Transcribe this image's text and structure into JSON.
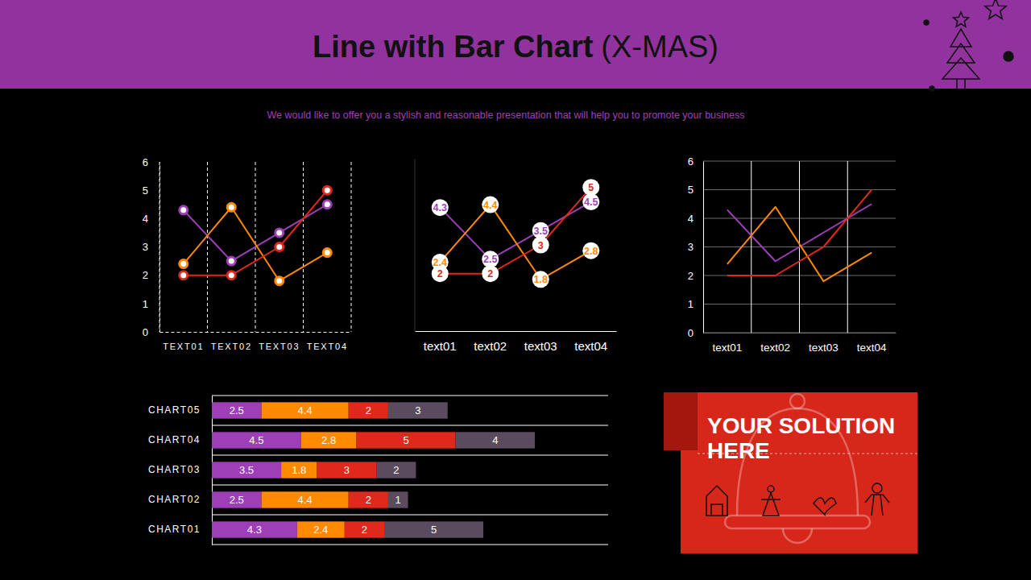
{
  "header": {
    "title": "Line with Bar Chart",
    "title_suffix": "(X-MAS)",
    "subtitle": "We would like to offer you a stylish and reasonable presentation that will help you to promote your business"
  },
  "chart_data": [
    {
      "type": "line",
      "categories": [
        "TEXT01",
        "TEXT02",
        "TEXT03",
        "TEXT04"
      ],
      "ylim": [
        0,
        6
      ],
      "yticks": [
        0,
        1,
        2,
        3,
        4,
        5,
        6
      ],
      "grid": "x",
      "series": [
        {
          "color": "#9e3fb8",
          "marker": "circle",
          "values": [
            4.3,
            2.5,
            3.5,
            4.5
          ]
        },
        {
          "color": "#ff8a00",
          "marker": "circle",
          "values": [
            2.4,
            4.4,
            1.8,
            2.8
          ]
        },
        {
          "color": "#e0281c",
          "marker": "circle",
          "values": [
            2,
            2,
            3,
            5
          ]
        }
      ]
    },
    {
      "type": "line",
      "categories": [
        "text01",
        "text02",
        "text03",
        "text04"
      ],
      "ylim": [
        0,
        6
      ],
      "tick_labels": "x",
      "data_labels": true,
      "series": [
        {
          "color": "#9e3fb8",
          "marker": "circle",
          "values": [
            4.3,
            2.5,
            3.5,
            4.5
          ]
        },
        {
          "color": "#ff8a00",
          "marker": "circle",
          "values": [
            2.4,
            4.4,
            1.8,
            2.8
          ]
        },
        {
          "color": "#e0281c",
          "marker": "circle",
          "values": [
            2,
            2,
            3,
            5
          ]
        }
      ]
    },
    {
      "type": "line",
      "categories": [
        "text01",
        "text02",
        "text03",
        "text04"
      ],
      "ylim": [
        0,
        6
      ],
      "yticks": [
        0,
        1,
        2,
        3,
        4,
        5,
        6
      ],
      "grid": true,
      "series": [
        {
          "color": "#9e3fb8",
          "values": [
            4.3,
            2.5,
            3.5,
            4.5
          ]
        },
        {
          "color": "#ff8a00",
          "values": [
            2.4,
            4.4,
            1.8,
            2.8
          ]
        },
        {
          "color": "#e0281c",
          "values": [
            2,
            2,
            3,
            5
          ]
        }
      ]
    },
    {
      "type": "bar",
      "orientation": "horizontal",
      "stacked": true,
      "data_labels": true,
      "tick_labels": "y",
      "categories": [
        "CHART01",
        "CHART02",
        "CHART03",
        "CHART04",
        "CHART05"
      ],
      "xlim": [
        0,
        20
      ],
      "series": [
        {
          "color": "#9e3fb8",
          "values": [
            4.3,
            2.5,
            3.5,
            4.5,
            2.5
          ]
        },
        {
          "color": "#ff8a00",
          "values": [
            2.4,
            4.4,
            1.8,
            2.8,
            4.4
          ]
        },
        {
          "color": "#e0281c",
          "values": [
            2,
            2,
            3,
            5,
            2
          ]
        },
        {
          "color": "#5b4b5e",
          "values": [
            5,
            1,
            2,
            4,
            3
          ]
        }
      ]
    }
  ],
  "callout": {
    "text": "YOUR SOLUTION HERE"
  }
}
